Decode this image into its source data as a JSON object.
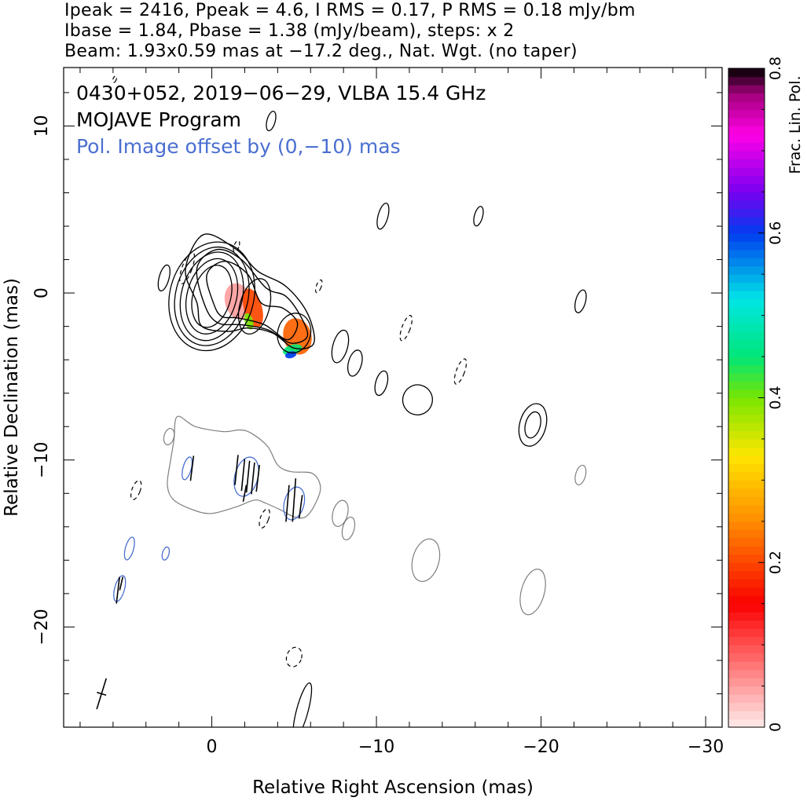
{
  "header": {
    "line1": "Ipeak = 2416, Ppeak = 4.6, I RMS = 0.17, P RMS = 0.18 mJy/bm",
    "line2": "Ibase = 1.84, Pbase = 1.38 (mJy/beam), steps: x 2",
    "line3": "Beam: 1.93x0.59 mas at −17.2 deg., Nat. Wgt. (no taper)"
  },
  "annotations": {
    "source_line": "0430+052, 2019−06−29, VLBA 15.4 GHz",
    "program_line": "MOJAVE Program",
    "offset_line": "Pol. Image offset by (0,−10) mas"
  },
  "colors": {
    "total_intensity_contour": "#000000",
    "pol_offset_contour": "#7f7f7f",
    "pol_text": "#4a6fd0",
    "evpa_ticks": "#000000"
  },
  "chart_data": {
    "type": "contour",
    "xlabel": "Relative Right Ascension (mas)",
    "ylabel": "Relative Declination (mas)",
    "xlim": [
      9,
      -31
    ],
    "ylim": [
      -26,
      13.5
    ],
    "x_ticks": [
      0,
      -10,
      -20,
      -30
    ],
    "x_tick_labels": [
      "0",
      "−10",
      "−20",
      "−30"
    ],
    "y_ticks": [
      10,
      0,
      -10,
      -20
    ],
    "y_tick_labels": [
      "10",
      "0",
      "−10",
      "−20"
    ],
    "colorbar": {
      "label": "Frac. Lin. Pol.",
      "min": 0,
      "max": 0.8,
      "ticks": [
        0,
        0.2,
        0.4,
        0.6,
        0.8
      ],
      "tick_labels": [
        "0",
        "0.2",
        "0.4",
        "0.6",
        "0.8"
      ]
    },
    "core_contours": {
      "center": [
        0,
        -0.2
      ],
      "levels": [
        {
          "rx": 1.15,
          "ry": 1.9
        },
        {
          "rx": 1.5,
          "ry": 2.3
        },
        {
          "rx": 1.85,
          "ry": 2.7
        },
        {
          "rx": 2.2,
          "ry": 3.0
        },
        {
          "rx": 2.55,
          "ry": 3.3
        }
      ]
    },
    "outer_contours": [
      [
        [
          0.9,
          -0.6
        ],
        [
          1.6,
          1.4
        ],
        [
          0.5,
          3.5
        ],
        [
          -1.5,
          2.6
        ],
        [
          -2.8,
          1.3
        ],
        [
          -4.5,
          0.4
        ],
        [
          -5.8,
          -1.2
        ],
        [
          -6.2,
          -3.0
        ],
        [
          -5,
          -3.3
        ],
        [
          -3.7,
          -2.4
        ],
        [
          -2.2,
          -2.1
        ],
        [
          -1,
          -2.3
        ],
        [
          0.6,
          -2
        ]
      ],
      [
        [
          0.4,
          -0.8
        ],
        [
          0.9,
          1.5
        ],
        [
          -0.3,
          2.6
        ],
        [
          -1.8,
          2.0
        ],
        [
          -3.3,
          0.3
        ],
        [
          -4.5,
          -0.2
        ],
        [
          -5.4,
          -1.4
        ],
        [
          -5.8,
          -2.6
        ],
        [
          -4.8,
          -3.0
        ],
        [
          -3.4,
          -2.2
        ],
        [
          -1.8,
          -1.9
        ],
        [
          -0.4,
          -1.8
        ]
      ],
      [
        [
          -0.1,
          -0.6
        ],
        [
          0.3,
          1.1
        ],
        [
          -0.8,
          1.9
        ],
        [
          -2.2,
          1.1
        ],
        [
          -3.0,
          -0.6
        ],
        [
          -4.3,
          -0.9
        ],
        [
          -5.2,
          -1.8
        ],
        [
          -4.6,
          -2.8
        ],
        [
          -3.2,
          -1.9
        ],
        [
          -1.6,
          -1.5
        ],
        [
          -0.6,
          -1.4
        ]
      ]
    ],
    "jet_knots": [
      {
        "x": -2.6,
        "y": -0.8,
        "rx": 0.9,
        "ry": 1.7
      },
      {
        "x": -5.0,
        "y": -2.4,
        "rx": 1.0,
        "ry": 1.2
      },
      {
        "x": -7.8,
        "y": -3.2,
        "rx": 0.45,
        "ry": 1.0
      },
      {
        "x": -8.7,
        "y": -4.2,
        "rx": 0.4,
        "ry": 0.8
      },
      {
        "x": -10.3,
        "y": -5.4,
        "rx": 0.35,
        "ry": 0.75
      },
      {
        "x": -12.5,
        "y": -6.4,
        "rx": 0.9,
        "ry": 0.9
      },
      {
        "x": -19.5,
        "y": -7.9,
        "rx": 0.8,
        "ry": 1.3
      },
      {
        "x": -19.5,
        "y": -7.9,
        "rx": 0.45,
        "ry": 0.8
      },
      {
        "x": -10.4,
        "y": 4.6,
        "rx": 0.3,
        "ry": 0.8
      },
      {
        "x": -16.2,
        "y": 4.6,
        "rx": 0.25,
        "ry": 0.6
      },
      {
        "x": -22.4,
        "y": -0.5,
        "rx": 0.3,
        "ry": 0.7
      },
      {
        "x": 2.9,
        "y": 0.9,
        "rx": 0.3,
        "ry": 0.8
      },
      {
        "x": -3.6,
        "y": 10.3,
        "rx": 0.25,
        "ry": 0.6
      },
      {
        "x": -5.5,
        "y": -25.0,
        "rx": 0.35,
        "ry": 1.7
      }
    ],
    "negative_contours": [
      {
        "x": 1.5,
        "y": 1.5,
        "rx": 0.3,
        "ry": 1.0
      },
      {
        "x": -1.5,
        "y": 2.8,
        "rx": 0.15,
        "ry": 0.35
      },
      {
        "x": -6.5,
        "y": 0.4,
        "rx": 0.15,
        "ry": 0.4
      },
      {
        "x": -11.8,
        "y": -2.1,
        "rx": 0.25,
        "ry": 0.8
      },
      {
        "x": -15.1,
        "y": -4.7,
        "rx": 0.25,
        "ry": 0.8
      },
      {
        "x": 4.6,
        "y": -11.8,
        "rx": 0.25,
        "ry": 0.6
      },
      {
        "x": -3.2,
        "y": -13.5,
        "rx": 0.25,
        "ry": 0.6
      },
      {
        "x": -5.0,
        "y": -21.8,
        "rx": 0.45,
        "ry": 0.6
      },
      {
        "x": 5.9,
        "y": 12.8,
        "rx": 0.1,
        "ry": 0.2
      }
    ],
    "pol_contour_main": [
      [
        2.1,
        -7.4
      ],
      [
        1.0,
        -8.0
      ],
      [
        -0.7,
        -8.3
      ],
      [
        -1.7,
        -8.2
      ],
      [
        -2.4,
        -8.4
      ],
      [
        -3.4,
        -9.2
      ],
      [
        -4.0,
        -10.3
      ],
      [
        -4.8,
        -10.7
      ],
      [
        -6.1,
        -10.8
      ],
      [
        -6.6,
        -11.6
      ],
      [
        -6.3,
        -12.6
      ],
      [
        -5.7,
        -13.4
      ],
      [
        -5.0,
        -13.4
      ],
      [
        -4.2,
        -13.0
      ],
      [
        -3.3,
        -12.6
      ],
      [
        -2.6,
        -12.4
      ],
      [
        -1.5,
        -12.8
      ],
      [
        0.0,
        -13.2
      ],
      [
        1.1,
        -13.0
      ],
      [
        2.3,
        -12.4
      ],
      [
        2.7,
        -11.5
      ],
      [
        2.5,
        -10.0
      ],
      [
        2.3,
        -8.8
      ]
    ],
    "pol_contours_grey": [
      {
        "x": 2.6,
        "y": -8.6,
        "rx": 0.3,
        "ry": 0.5
      },
      {
        "x": -7.8,
        "y": -13.2,
        "rx": 0.45,
        "ry": 0.8
      },
      {
        "x": -8.3,
        "y": -14.1,
        "rx": 0.35,
        "ry": 0.7
      },
      {
        "x": -13.0,
        "y": -16.0,
        "rx": 0.8,
        "ry": 1.3
      },
      {
        "x": -19.5,
        "y": -17.9,
        "rx": 0.7,
        "ry": 1.4
      },
      {
        "x": -22.4,
        "y": -10.9,
        "rx": 0.3,
        "ry": 0.6
      }
    ],
    "pol_contours_blue": [
      {
        "x": 1.5,
        "y": -10.5,
        "rx": 0.25,
        "ry": 0.7
      },
      {
        "x": -2.1,
        "y": -11.0,
        "rx": 0.7,
        "ry": 1.2
      },
      {
        "x": -5.0,
        "y": -12.6,
        "rx": 0.6,
        "ry": 1.0
      },
      {
        "x": 5.0,
        "y": -15.3,
        "rx": 0.25,
        "ry": 0.7
      },
      {
        "x": 5.6,
        "y": -17.7,
        "rx": 0.3,
        "ry": 0.8
      },
      {
        "x": 2.8,
        "y": -15.6,
        "rx": 0.2,
        "ry": 0.4
      }
    ],
    "evpa_ticks": [
      {
        "x": 1.2,
        "y": -10.5,
        "len": 1.5
      },
      {
        "x": -1.5,
        "y": -10.6,
        "len": 1.8
      },
      {
        "x": -1.9,
        "y": -10.9,
        "len": 1.9
      },
      {
        "x": -2.2,
        "y": -11.0,
        "len": 1.9
      },
      {
        "x": -2.5,
        "y": -11.1,
        "len": 1.9
      },
      {
        "x": -2.8,
        "y": -11.1,
        "len": 1.6
      },
      {
        "x": -2.0,
        "y": -12.0,
        "len": 1.0
      },
      {
        "x": -4.6,
        "y": -12.6,
        "len": 2.2
      },
      {
        "x": -5.0,
        "y": -12.4,
        "len": 2.6
      },
      {
        "x": -5.4,
        "y": -12.8,
        "len": 1.4
      },
      {
        "x": 5.7,
        "y": -17.8,
        "len": 1.6
      },
      {
        "x": 5.5,
        "y": -17.4,
        "len": 0.8
      }
    ],
    "frac_pol_blobs": [
      {
        "x": -1.6,
        "y": -0.5,
        "rx": 0.8,
        "ry": 1.1,
        "value": 0.05
      },
      {
        "x": -2.5,
        "y": -0.9,
        "rx": 0.55,
        "ry": 1.2,
        "value": 0.2
      },
      {
        "x": -2.25,
        "y": -1.7,
        "rx": 0.25,
        "ry": 0.5,
        "value": 0.4
      },
      {
        "x": -5.2,
        "y": -2.6,
        "rx": 0.85,
        "ry": 1.1,
        "value": 0.22
      },
      {
        "x": -4.9,
        "y": -3.4,
        "rx": 0.6,
        "ry": 0.3,
        "value": 0.45
      },
      {
        "x": -4.8,
        "y": -3.7,
        "rx": 0.35,
        "ry": 0.2,
        "value": 0.6
      }
    ],
    "beam": {
      "x": 6.7,
      "y": -24.0,
      "major": 1.93,
      "minor": 0.59,
      "pa": -17.2
    }
  }
}
